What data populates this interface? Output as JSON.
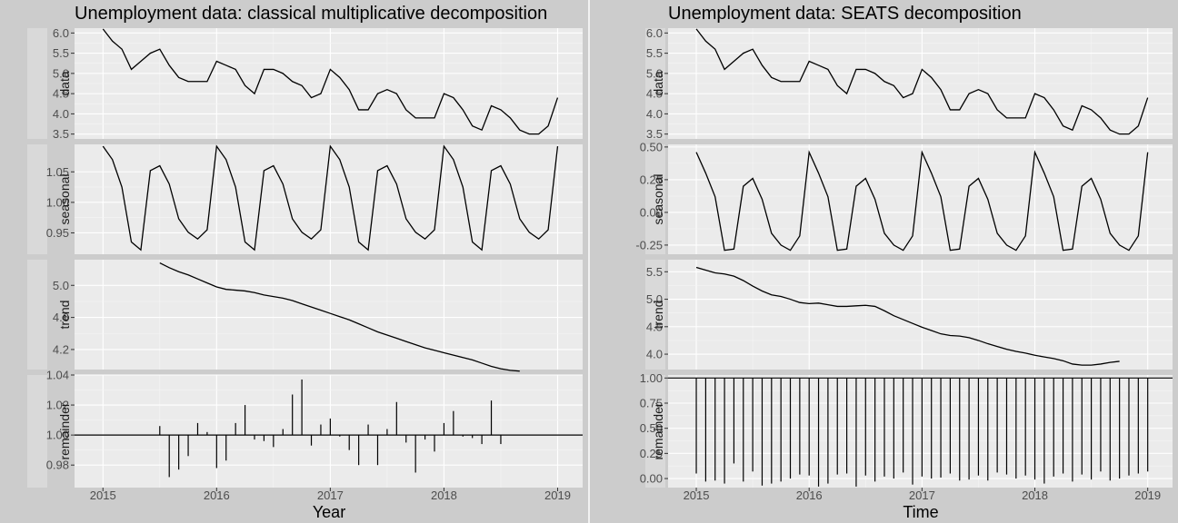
{
  "chart_data": [
    {
      "type": "line",
      "title": "Unemployment data: classical multiplicative decomposition",
      "xlabel": "Year",
      "x_ticks": [
        "2015",
        "2016",
        "2017",
        "2018",
        "2019"
      ],
      "x_start": 2015,
      "x_step": 0.0833333,
      "xlim": [
        2014.75,
        2019.22
      ],
      "panels": [
        {
          "name": "data",
          "type": "line",
          "ylim": [
            3.38,
            6.12
          ],
          "y_ticks": [
            3.5,
            4.0,
            4.5,
            5.0,
            5.5,
            6.0
          ],
          "tick_labels": [
            "3.5",
            "4.0",
            "4.5",
            "5.0",
            "5.5",
            "6.0"
          ],
          "values": [
            6.1,
            5.8,
            5.6,
            5.1,
            5.3,
            5.5,
            5.6,
            5.2,
            4.9,
            4.8,
            4.8,
            4.8,
            5.3,
            5.2,
            5.1,
            4.7,
            4.5,
            5.1,
            5.1,
            5.0,
            4.8,
            4.7,
            4.4,
            4.5,
            5.1,
            4.9,
            4.6,
            4.1,
            4.1,
            4.5,
            4.6,
            4.5,
            4.1,
            3.9,
            3.9,
            3.9,
            4.5,
            4.4,
            4.1,
            3.7,
            3.6,
            4.2,
            4.1,
            3.9,
            3.6,
            3.5,
            3.5,
            3.7,
            4.4
          ]
        },
        {
          "name": "seasonal",
          "type": "line",
          "ylim": [
            0.915,
            1.095
          ],
          "y_ticks": [
            0.95,
            1.0,
            1.05
          ],
          "tick_labels": [
            "0.95",
            "1.00",
            "1.05"
          ],
          "values": [
            1.092,
            1.07,
            1.025,
            0.935,
            0.922,
            1.052,
            1.06,
            1.03,
            0.973,
            0.951,
            0.94,
            0.955,
            1.092,
            1.07,
            1.025,
            0.935,
            0.922,
            1.052,
            1.06,
            1.03,
            0.973,
            0.951,
            0.94,
            0.955,
            1.092,
            1.07,
            1.025,
            0.935,
            0.922,
            1.052,
            1.06,
            1.03,
            0.973,
            0.951,
            0.94,
            0.955,
            1.092,
            1.07,
            1.025,
            0.935,
            0.922,
            1.052,
            1.06,
            1.03,
            0.973,
            0.951,
            0.94,
            0.955,
            1.092
          ]
        },
        {
          "name": "trend",
          "type": "line",
          "ylim": [
            3.95,
            5.32
          ],
          "y_ticks": [
            4.2,
            4.6,
            5.0
          ],
          "tick_labels": [
            "4.2",
            "4.6",
            "5.0"
          ],
          "x_offset": 6,
          "values": [
            5.28,
            5.22,
            5.17,
            5.13,
            5.08,
            5.03,
            4.98,
            4.95,
            4.94,
            4.93,
            4.91,
            4.88,
            4.86,
            4.84,
            4.81,
            4.77,
            4.73,
            4.69,
            4.65,
            4.61,
            4.57,
            4.52,
            4.47,
            4.42,
            4.38,
            4.34,
            4.3,
            4.26,
            4.22,
            4.19,
            4.16,
            4.13,
            4.1,
            4.07,
            4.03,
            3.99,
            3.96,
            3.94,
            3.93
          ]
        },
        {
          "name": "remainder",
          "type": "bar",
          "ylim": [
            0.965,
            1.04
          ],
          "baseline": 1.0,
          "y_ticks": [
            0.98,
            1.0,
            1.02,
            1.04
          ],
          "tick_labels": [
            "0.98",
            "1.00",
            "1.02",
            "1.04"
          ],
          "x_offset": 6,
          "values": [
            1.006,
            0.972,
            0.977,
            0.986,
            1.008,
            1.002,
            0.978,
            0.983,
            1.008,
            1.02,
            0.997,
            0.996,
            0.992,
            1.004,
            1.027,
            1.037,
            0.993,
            1.007,
            1.011,
            0.999,
            0.99,
            0.98,
            1.007,
            0.98,
            1.004,
            1.022,
            0.995,
            0.975,
            0.997,
            0.989,
            1.008,
            1.016,
            0.999,
            0.998,
            0.994,
            1.023,
            0.994
          ]
        }
      ]
    },
    {
      "type": "line",
      "title": "Unemployment data: SEATS decomposition",
      "xlabel": "Time",
      "x_ticks": [
        "2015",
        "2016",
        "2017",
        "2018",
        "2019"
      ],
      "x_start": 2015,
      "x_step": 0.0833333,
      "xlim": [
        2014.75,
        2019.22
      ],
      "panels": [
        {
          "name": "data",
          "type": "line",
          "ylim": [
            3.38,
            6.12
          ],
          "y_ticks": [
            3.5,
            4.0,
            4.5,
            5.0,
            5.5,
            6.0
          ],
          "tick_labels": [
            "3.5",
            "4.0",
            "4.5",
            "5.0",
            "5.5",
            "6.0"
          ],
          "values": [
            6.1,
            5.8,
            5.6,
            5.1,
            5.3,
            5.5,
            5.6,
            5.2,
            4.9,
            4.8,
            4.8,
            4.8,
            5.3,
            5.2,
            5.1,
            4.7,
            4.5,
            5.1,
            5.1,
            5.0,
            4.8,
            4.7,
            4.4,
            4.5,
            5.1,
            4.9,
            4.6,
            4.1,
            4.1,
            4.5,
            4.6,
            4.5,
            4.1,
            3.9,
            3.9,
            3.9,
            4.5,
            4.4,
            4.1,
            3.7,
            3.6,
            4.2,
            4.1,
            3.9,
            3.6,
            3.5,
            3.5,
            3.7,
            4.4
          ]
        },
        {
          "name": "seasonal",
          "type": "line",
          "ylim": [
            -0.32,
            0.52
          ],
          "y_ticks": [
            -0.25,
            0.0,
            0.25,
            0.5
          ],
          "tick_labels": [
            "-0.25",
            "0.00",
            "0.25",
            "0.50"
          ],
          "values": [
            0.46,
            0.3,
            0.12,
            -0.29,
            -0.28,
            0.2,
            0.26,
            0.1,
            -0.16,
            -0.25,
            -0.29,
            -0.18,
            0.46,
            0.3,
            0.12,
            -0.29,
            -0.28,
            0.2,
            0.26,
            0.1,
            -0.16,
            -0.25,
            -0.29,
            -0.18,
            0.46,
            0.3,
            0.12,
            -0.29,
            -0.28,
            0.2,
            0.26,
            0.1,
            -0.16,
            -0.25,
            -0.29,
            -0.18,
            0.46,
            0.3,
            0.12,
            -0.29,
            -0.28,
            0.2,
            0.26,
            0.1,
            -0.16,
            -0.25,
            -0.29,
            -0.18,
            0.46
          ]
        },
        {
          "name": "trend",
          "type": "line",
          "ylim": [
            3.72,
            5.72
          ],
          "y_ticks": [
            4.0,
            4.5,
            5.0,
            5.5
          ],
          "tick_labels": [
            "4.0",
            "4.5",
            "5.0",
            "5.5"
          ],
          "values": [
            5.58,
            5.53,
            5.48,
            5.46,
            5.42,
            5.34,
            5.24,
            5.15,
            5.08,
            5.05,
            5.0,
            4.94,
            4.92,
            4.93,
            4.9,
            4.87,
            4.87,
            4.88,
            4.89,
            4.87,
            4.79,
            4.7,
            4.63,
            4.56,
            4.49,
            4.43,
            4.37,
            4.34,
            4.33,
            4.3,
            4.25,
            4.19,
            4.14,
            4.09,
            4.05,
            4.02,
            3.98,
            3.95,
            3.92,
            3.88,
            3.82,
            3.8,
            3.8,
            3.82,
            3.85,
            3.87
          ]
        },
        {
          "name": "remainder",
          "type": "bar",
          "ylim": [
            -0.09,
            1.03
          ],
          "baseline": 1.0,
          "y_ticks": [
            0.0,
            0.25,
            0.5,
            0.75,
            1.0
          ],
          "tick_labels": [
            "0.00",
            "0.25",
            "0.50",
            "0.75",
            "1.00"
          ],
          "values": [
            0.05,
            -0.03,
            -0.02,
            -0.05,
            0.15,
            -0.03,
            0.07,
            -0.07,
            -0.05,
            -0.03,
            0.0,
            0.04,
            0.03,
            -0.08,
            -0.05,
            0.04,
            0.05,
            -0.08,
            0.03,
            -0.03,
            0.02,
            0.0,
            0.06,
            -0.06,
            0.02,
            0.0,
            0.01,
            0.05,
            -0.02,
            -0.01,
            0.03,
            -0.02,
            0.06,
            0.04,
            0.0,
            0.03,
            -0.01,
            -0.05,
            0.02,
            0.05,
            -0.03,
            0.04,
            -0.01,
            0.07,
            -0.02,
            0.0,
            0.03,
            0.05,
            0.07
          ]
        }
      ]
    }
  ]
}
